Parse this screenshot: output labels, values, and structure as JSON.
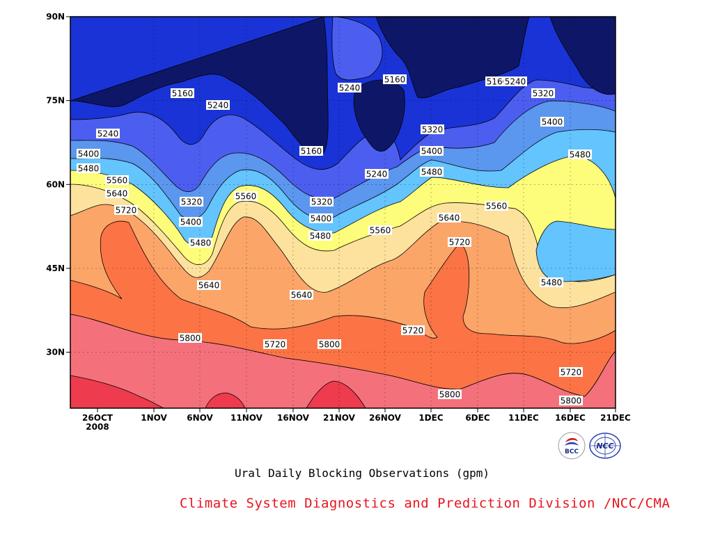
{
  "chart_data": {
    "type": "heatmap",
    "subtype": "time-latitude filled contour",
    "title": "Ural Daily Blocking Observations (gpm)",
    "credit": "Climate System Diagnostics and Prediction Division /NCC/CMA",
    "x_tick_labels": [
      "26OCT",
      "1NOV",
      "6NOV",
      "11NOV",
      "16NOV",
      "21NOV",
      "26NOV",
      "1DEC",
      "6DEC",
      "11DEC",
      "16DEC",
      "21DEC"
    ],
    "x_year_label": "2008",
    "y_tick_labels": [
      "30N",
      "45N",
      "60N",
      "75N",
      "90N"
    ],
    "ylim": [
      20,
      90
    ],
    "grid": true,
    "contour_levels": [
      5160,
      5240,
      5320,
      5400,
      5480,
      5560,
      5640,
      5720,
      5800
    ],
    "colors": [
      "#0e1767",
      "#1a33d6",
      "#4c5ef0",
      "#5b96ef",
      "#64c4fe",
      "#fdfd7b",
      "#fde29e",
      "#fca569",
      "#fc7445",
      "#f4717c",
      "#ee3b4d"
    ],
    "contour_labels": [
      "5160",
      "5240",
      "5240",
      "5160",
      "5160",
      "5240",
      "5160",
      "5160",
      "5240",
      "5240",
      "5320",
      "5400",
      "5480",
      "5560",
      "5640",
      "5720",
      "5320",
      "5400",
      "5480",
      "5560",
      "5320",
      "5400",
      "5480",
      "5560",
      "5240",
      "5320",
      "5400",
      "5480",
      "5640",
      "5720",
      "5560",
      "5400",
      "5480",
      "5640",
      "5640",
      "5720",
      "5800",
      "5720",
      "5800",
      "5720",
      "5800",
      "5720",
      "5800"
    ]
  },
  "logos": {
    "bcc": "BCC",
    "ncc": "NCC"
  }
}
